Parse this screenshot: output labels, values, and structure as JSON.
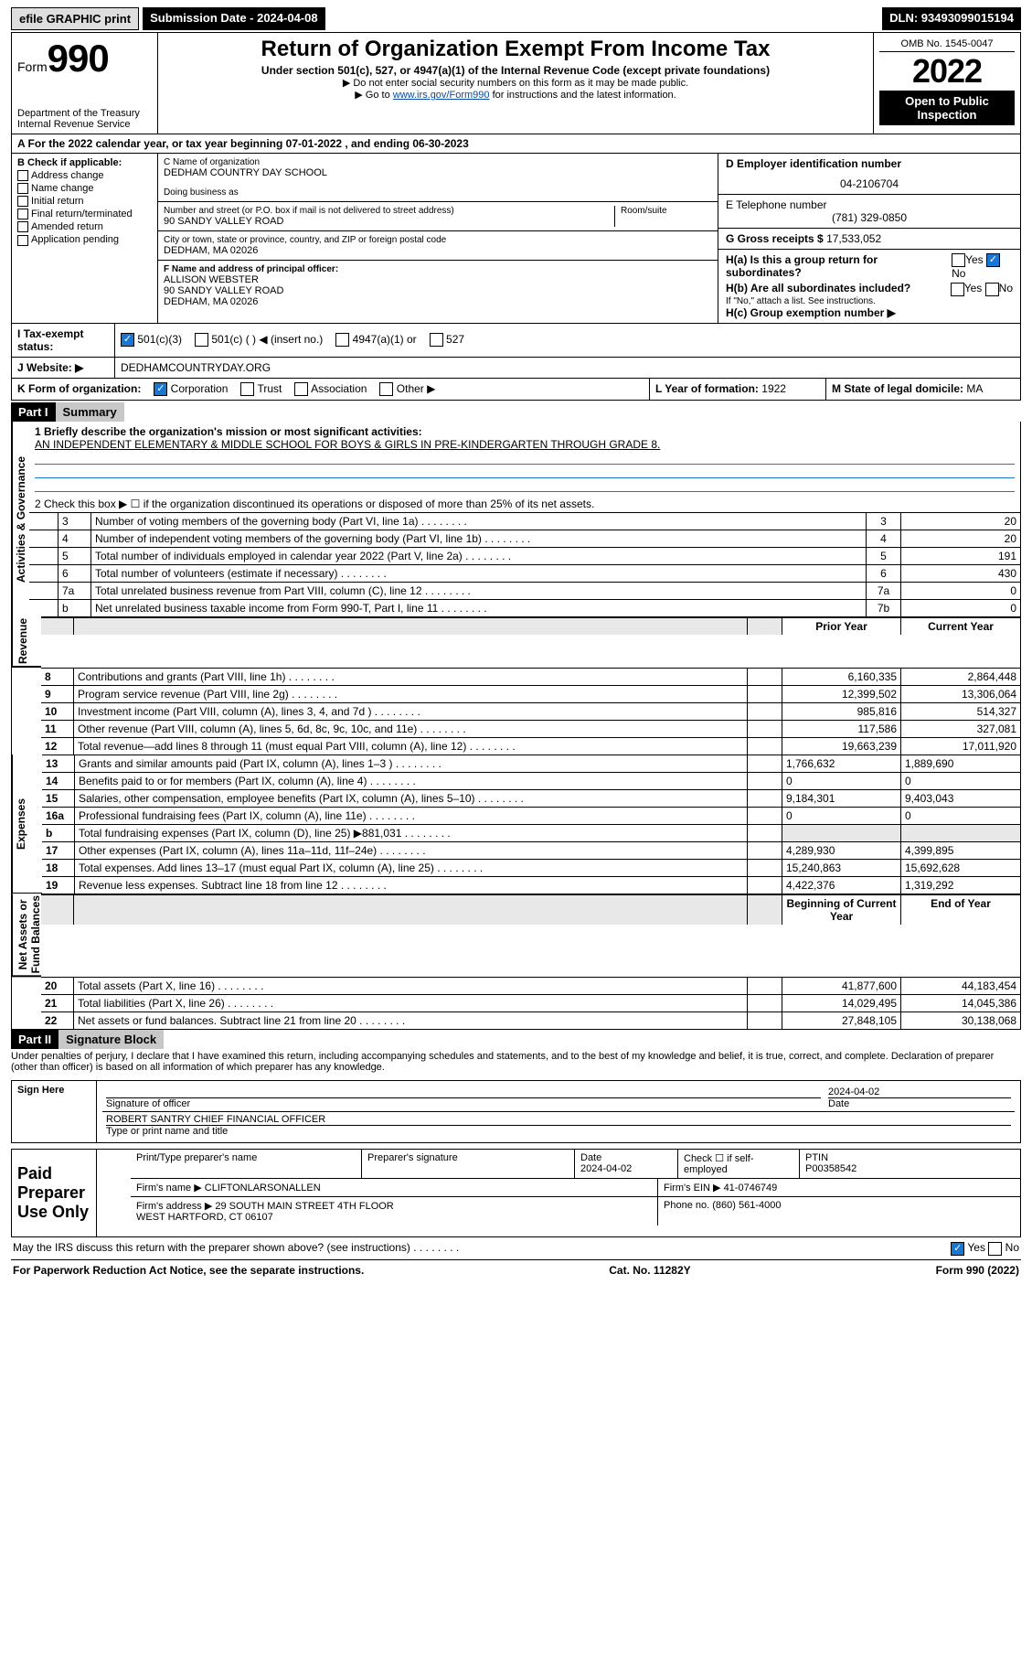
{
  "topbar": {
    "efile": "efile GRAPHIC print",
    "submission": "Submission Date - 2024-04-08",
    "dln": "DLN: 93493099015194"
  },
  "header": {
    "form_prefix": "Form",
    "form_number": "990",
    "dept": "Department of the Treasury\nInternal Revenue Service",
    "title": "Return of Organization Exempt From Income Tax",
    "subtitle": "Under section 501(c), 527, or 4947(a)(1) of the Internal Revenue Code (except private foundations)",
    "note1": "▶ Do not enter social security numbers on this form as it may be made public.",
    "note2_pre": "▶ Go to ",
    "note2_link": "www.irs.gov/Form990",
    "note2_post": " for instructions and the latest information.",
    "omb": "OMB No. 1545-0047",
    "year": "2022",
    "open": "Open to Public Inspection"
  },
  "rowA": "A For the 2022 calendar year, or tax year beginning 07-01-2022   , and ending 06-30-2023",
  "checkB": {
    "label": "B Check if applicable:",
    "items": [
      "Address change",
      "Name change",
      "Initial return",
      "Final return/terminated",
      "Amended return",
      "Application pending"
    ]
  },
  "org": {
    "name_label": "C Name of organization",
    "name": "DEDHAM COUNTRY DAY SCHOOL",
    "dba_label": "Doing business as",
    "addr_label": "Number and street (or P.O. box if mail is not delivered to street address)",
    "room_label": "Room/suite",
    "addr": "90 SANDY VALLEY ROAD",
    "city_label": "City or town, state or province, country, and ZIP or foreign postal code",
    "city": "DEDHAM, MA  02026",
    "officer_label": "F Name and address of principal officer:",
    "officer": "ALLISON WEBSTER\n90 SANDY VALLEY ROAD\nDEDHAM, MA  02026"
  },
  "right": {
    "ein_label": "D Employer identification number",
    "ein": "04-2106704",
    "phone_label": "E Telephone number",
    "phone": "(781) 329-0850",
    "gross_label": "G Gross receipts $",
    "gross": "17,533,052",
    "ha": "H(a)  Is this a group return for subordinates?",
    "hb": "H(b)  Are all subordinates included?",
    "hb_note": "If \"No,\" attach a list. See instructions.",
    "hc": "H(c)  Group exemption number ▶",
    "yes": "Yes",
    "no": "No"
  },
  "rowI": {
    "label": "I  Tax-exempt status:",
    "opts": [
      "501(c)(3)",
      "501(c) (  ) ◀ (insert no.)",
      "4947(a)(1) or",
      "527"
    ]
  },
  "rowJ": {
    "label": "J  Website: ▶",
    "value": "DEDHAMCOUNTRYDAY.ORG"
  },
  "rowK": {
    "label": "K Form of organization:",
    "opts": [
      "Corporation",
      "Trust",
      "Association",
      "Other ▶"
    ]
  },
  "rowL": {
    "label": "L Year of formation:",
    "value": "1922"
  },
  "rowM": {
    "label": "M State of legal domicile:",
    "value": "MA"
  },
  "part1": {
    "hdr": "Part I",
    "title": "Summary",
    "q1_label": "1  Briefly describe the organization's mission or most significant activities:",
    "q1_text": "AN INDEPENDENT ELEMENTARY & MIDDLE SCHOOL FOR BOYS & GIRLS IN PRE-KINDERGARTEN THROUGH GRADE 8.",
    "q2": "2  Check this box ▶ ☐  if the organization discontinued its operations or disposed of more than 25% of its net assets.",
    "gov_rows": [
      {
        "n": "3",
        "label": "Number of voting members of the governing body (Part VI, line 1a)",
        "box": "3",
        "val": "20"
      },
      {
        "n": "4",
        "label": "Number of independent voting members of the governing body (Part VI, line 1b)",
        "box": "4",
        "val": "20"
      },
      {
        "n": "5",
        "label": "Total number of individuals employed in calendar year 2022 (Part V, line 2a)",
        "box": "5",
        "val": "191"
      },
      {
        "n": "6",
        "label": "Total number of volunteers (estimate if necessary)",
        "box": "6",
        "val": "430"
      },
      {
        "n": "7a",
        "label": "Total unrelated business revenue from Part VIII, column (C), line 12",
        "box": "7a",
        "val": "0"
      },
      {
        "n": "b",
        "label": "Net unrelated business taxable income from Form 990-T, Part I, line 11",
        "box": "7b",
        "val": "0"
      }
    ],
    "vlabels": {
      "gov": "Activities & Governance",
      "rev": "Revenue",
      "exp": "Expenses",
      "net": "Net Assets or\nFund Balances"
    },
    "colhdr": {
      "prior": "Prior Year",
      "current": "Current Year",
      "beg": "Beginning of Current Year",
      "end": "End of Year"
    },
    "rev_rows": [
      {
        "n": "8",
        "label": "Contributions and grants (Part VIII, line 1h)",
        "p": "6,160,335",
        "c": "2,864,448"
      },
      {
        "n": "9",
        "label": "Program service revenue (Part VIII, line 2g)",
        "p": "12,399,502",
        "c": "13,306,064"
      },
      {
        "n": "10",
        "label": "Investment income (Part VIII, column (A), lines 3, 4, and 7d )",
        "p": "985,816",
        "c": "514,327"
      },
      {
        "n": "11",
        "label": "Other revenue (Part VIII, column (A), lines 5, 6d, 8c, 9c, 10c, and 11e)",
        "p": "117,586",
        "c": "327,081"
      },
      {
        "n": "12",
        "label": "Total revenue—add lines 8 through 11 (must equal Part VIII, column (A), line 12)",
        "p": "19,663,239",
        "c": "17,011,920"
      }
    ],
    "exp_rows": [
      {
        "n": "13",
        "label": "Grants and similar amounts paid (Part IX, column (A), lines 1–3 )",
        "p": "1,766,632",
        "c": "1,889,690"
      },
      {
        "n": "14",
        "label": "Benefits paid to or for members (Part IX, column (A), line 4)",
        "p": "0",
        "c": "0"
      },
      {
        "n": "15",
        "label": "Salaries, other compensation, employee benefits (Part IX, column (A), lines 5–10)",
        "p": "9,184,301",
        "c": "9,403,043"
      },
      {
        "n": "16a",
        "label": "Professional fundraising fees (Part IX, column (A), line 11e)",
        "p": "0",
        "c": "0"
      },
      {
        "n": "b",
        "label": "Total fundraising expenses (Part IX, column (D), line 25) ▶881,031",
        "p": "",
        "c": ""
      },
      {
        "n": "17",
        "label": "Other expenses (Part IX, column (A), lines 11a–11d, 11f–24e)",
        "p": "4,289,930",
        "c": "4,399,895"
      },
      {
        "n": "18",
        "label": "Total expenses. Add lines 13–17 (must equal Part IX, column (A), line 25)",
        "p": "15,240,863",
        "c": "15,692,628"
      },
      {
        "n": "19",
        "label": "Revenue less expenses. Subtract line 18 from line 12",
        "p": "4,422,376",
        "c": "1,319,292"
      }
    ],
    "net_rows": [
      {
        "n": "20",
        "label": "Total assets (Part X, line 16)",
        "p": "41,877,600",
        "c": "44,183,454"
      },
      {
        "n": "21",
        "label": "Total liabilities (Part X, line 26)",
        "p": "14,029,495",
        "c": "14,045,386"
      },
      {
        "n": "22",
        "label": "Net assets or fund balances. Subtract line 21 from line 20",
        "p": "27,848,105",
        "c": "30,138,068"
      }
    ]
  },
  "part2": {
    "hdr": "Part II",
    "title": "Signature Block",
    "declaration": "Under penalties of perjury, I declare that I have examined this return, including accompanying schedules and statements, and to the best of my knowledge and belief, it is true, correct, and complete. Declaration of preparer (other than officer) is based on all information of which preparer has any knowledge.",
    "sign_here": "Sign Here",
    "sig_officer_label": "Signature of officer",
    "date_label": "Date",
    "sig_date": "2024-04-02",
    "name_title": "ROBERT SANTRY  CHIEF FINANCIAL OFFICER",
    "name_title_label": "Type or print name and title",
    "paid": "Paid Preparer Use Only",
    "prep_hdr": [
      "Print/Type preparer's name",
      "Preparer's signature",
      "Date",
      "",
      "PTIN"
    ],
    "prep_date": "2024-04-02",
    "prep_check": "Check ☐ if self-employed",
    "ptin": "P00358542",
    "firm_name_label": "Firm's name    ▶",
    "firm_name": "CLIFTONLARSONALLEN",
    "firm_ein_label": "Firm's EIN ▶",
    "firm_ein": "41-0746749",
    "firm_addr_label": "Firm's address ▶",
    "firm_addr": "29 SOUTH MAIN STREET 4TH FLOOR\nWEST HARTFORD, CT  06107",
    "firm_phone_label": "Phone no.",
    "firm_phone": "(860) 561-4000",
    "discuss": "May the IRS discuss this return with the preparer shown above? (see instructions)"
  },
  "footer": {
    "left": "For Paperwork Reduction Act Notice, see the separate instructions.",
    "mid": "Cat. No. 11282Y",
    "right": "Form 990 (2022)"
  },
  "colors": {
    "link": "#0b4aa2",
    "check_fill": "#1976d2",
    "shade": "#e8e8e8",
    "topbar_gray": "#dedede",
    "part_title_bg": "#c8c8c8"
  }
}
